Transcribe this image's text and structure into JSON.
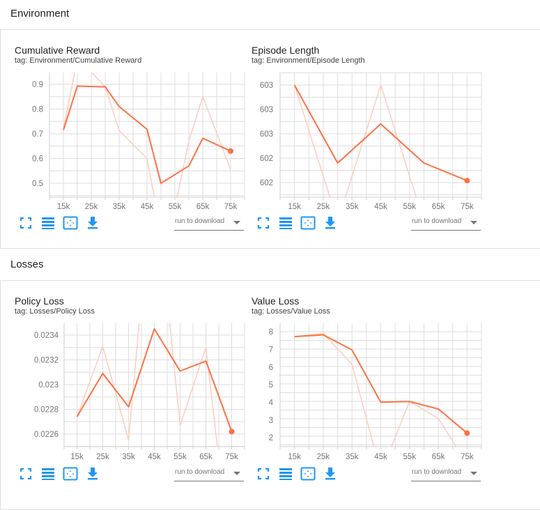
{
  "sections": [
    {
      "title": "Environment",
      "cards": [
        {
          "title": "Cumulative Reward",
          "tag": "tag: Environment/Cumulative Reward",
          "download_placeholder": "run to download"
        },
        {
          "title": "Episode Length",
          "tag": "tag: Environment/Episode Length",
          "download_placeholder": "run to download"
        }
      ]
    },
    {
      "title": "Losses",
      "cards": [
        {
          "title": "Policy Loss",
          "tag": "tag: Losses/Policy Loss",
          "download_placeholder": "run to download"
        },
        {
          "title": "Value Loss",
          "tag": "tag: Losses/Value Loss",
          "download_placeholder": "run to download"
        }
      ]
    }
  ],
  "toolbar_icons": [
    "fullscreen-icon",
    "data-table-icon",
    "fit-domain-icon",
    "download-icon"
  ],
  "colors": {
    "accent": "#2196f3",
    "line": "#ff7043",
    "line_raw": "#ffccbc",
    "grid": "#dddddd"
  },
  "chart_data": [
    {
      "type": "line",
      "title": "Cumulative Reward",
      "subtitle": "tag: Environment/Cumulative Reward",
      "xlabel": "",
      "ylabel": "",
      "x_ticks": [
        "15k",
        "25k",
        "35k",
        "45k",
        "55k",
        "65k",
        "75k"
      ],
      "y_ticks": [
        "0.5",
        "0.6",
        "0.7",
        "0.8",
        "0.9"
      ],
      "xlim": [
        10000,
        80000
      ],
      "ylim": [
        0.45,
        0.95
      ],
      "grid": true,
      "series": [
        {
          "name": "smoothed",
          "x": [
            15000,
            20000,
            30000,
            35000,
            45000,
            50000,
            60000,
            65000,
            75000
          ],
          "values": [
            0.715,
            0.893,
            0.89,
            0.81,
            0.718,
            0.5,
            0.57,
            0.682,
            0.63
          ]
        },
        {
          "name": "raw",
          "x": [
            15000,
            20000,
            25000,
            30000,
            35000,
            45000,
            50000,
            55000,
            60000,
            65000,
            75000
          ],
          "values": [
            0.72,
            1.0,
            0.95,
            0.89,
            0.713,
            0.6,
            0.3,
            0.4,
            0.67,
            0.85,
            0.555
          ]
        }
      ]
    },
    {
      "type": "line",
      "title": "Episode Length",
      "subtitle": "tag: Environment/Episode Length",
      "xlabel": "",
      "ylabel": "",
      "x_ticks": [
        "15k",
        "25k",
        "35k",
        "45k",
        "55k",
        "65k",
        "75k"
      ],
      "y_ticks": [
        "602",
        "602",
        "603",
        "603",
        "603"
      ],
      "xlim": [
        10000,
        80000
      ],
      "ylim": [
        601.98,
        603.02
      ],
      "grid": true,
      "series": [
        {
          "name": "smoothed",
          "x": [
            15000,
            30000,
            45000,
            60000,
            75000
          ],
          "values": [
            603.0,
            602.2,
            602.6,
            602.2,
            602.02
          ]
        },
        {
          "name": "raw",
          "x": [
            15000,
            30000,
            45000,
            60000,
            75000
          ],
          "values": [
            603.0,
            601.6,
            603.0,
            601.6,
            601.6
          ]
        }
      ]
    },
    {
      "type": "line",
      "title": "Policy Loss",
      "subtitle": "tag: Losses/Policy Loss",
      "xlabel": "",
      "ylabel": "",
      "x_ticks": [
        "15k",
        "25k",
        "35k",
        "45k",
        "55k",
        "65k",
        "75k"
      ],
      "y_ticks": [
        "0.0226",
        "0.0228",
        "0.023",
        "0.0232",
        "0.0234"
      ],
      "xlim": [
        10000,
        80000
      ],
      "ylim": [
        0.02249,
        0.0235
      ],
      "grid": true,
      "series": [
        {
          "name": "smoothed",
          "x": [
            15000,
            25000,
            35000,
            45000,
            55000,
            65000,
            75000
          ],
          "values": [
            0.02274,
            0.02309,
            0.02282,
            0.02345,
            0.02311,
            0.02319,
            0.02262
          ]
        },
        {
          "name": "raw",
          "x": [
            15000,
            25000,
            35000,
            40000,
            50000,
            55000,
            65000,
            70000
          ],
          "values": [
            0.02274,
            0.02331,
            0.02255,
            0.0237,
            0.0237,
            0.02267,
            0.0233,
            0.0224
          ]
        }
      ]
    },
    {
      "type": "line",
      "title": "Value Loss",
      "subtitle": "tag: Losses/Value Loss",
      "xlabel": "",
      "ylabel": "",
      "x_ticks": [
        "15k",
        "25k",
        "35k",
        "45k",
        "55k",
        "65k",
        "75k"
      ],
      "y_ticks": [
        "2",
        "3",
        "4",
        "5",
        "6",
        "7",
        "8"
      ],
      "xlim": [
        10000,
        80000
      ],
      "ylim": [
        1.5,
        8.45
      ],
      "grid": true,
      "series": [
        {
          "name": "smoothed",
          "x": [
            15000,
            25000,
            35000,
            45000,
            55000,
            65000,
            75000
          ],
          "values": [
            7.72,
            7.82,
            6.96,
            4.0,
            4.04,
            3.62,
            2.25
          ]
        },
        {
          "name": "raw",
          "x": [
            15000,
            25000,
            35000,
            45000,
            55000,
            65000,
            75000
          ],
          "values": [
            7.72,
            7.9,
            6.15,
            0.0,
            4.05,
            3.08,
            0.5
          ]
        }
      ]
    }
  ]
}
